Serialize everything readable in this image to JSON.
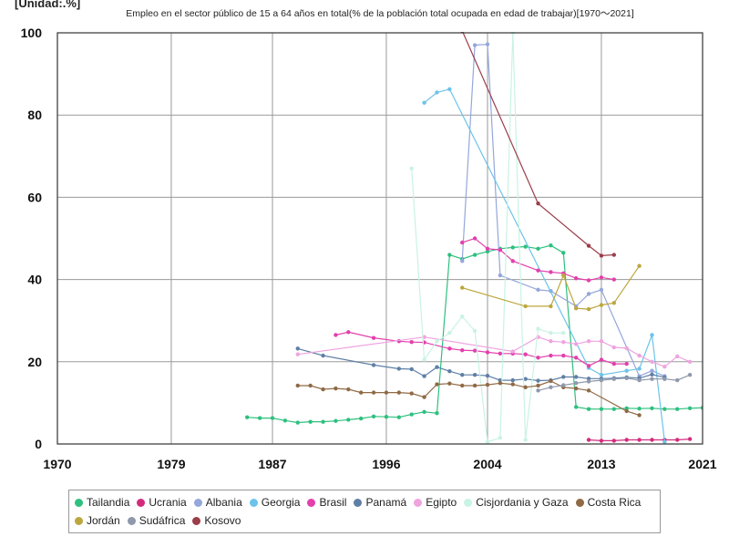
{
  "chart_data": {
    "type": "line",
    "title": "Empleo en el sector público de 15 a 64 años en total(% de la población total ocupada en edad de trabajar)[1970〜2021]",
    "unit_label": "[Unidad:.%]",
    "xlim": [
      1970,
      2021
    ],
    "ylim": [
      0,
      100
    ],
    "x_ticks": [
      "1970",
      "1979",
      "1987",
      "1996",
      "2004",
      "2013",
      "2021"
    ],
    "y_ticks": [
      "0",
      "20",
      "40",
      "60",
      "80",
      "100"
    ],
    "grid": true,
    "legend_position": "bottom",
    "series": [
      {
        "name": "Tailandia",
        "color": "#2ec07f",
        "x": [
          1985,
          1986,
          1987,
          1988,
          1989,
          1990,
          1991,
          1992,
          1993,
          1994,
          1995,
          1996,
          1997,
          1998,
          1999,
          2000,
          2001,
          2002,
          2003,
          2004,
          2005,
          2006,
          2007,
          2008,
          2009,
          2010,
          2011,
          2012,
          2013,
          2014,
          2015,
          2016,
          2017,
          2018,
          2019,
          2020,
          2021
        ],
        "y": [
          6.5,
          6.3,
          6.3,
          5.7,
          5.2,
          5.4,
          5.4,
          5.6,
          5.9,
          6.2,
          6.7,
          6.6,
          6.5,
          7.2,
          7.8,
          7.5,
          46.0,
          45.0,
          46.0,
          46.8,
          47.5,
          47.8,
          48.0,
          47.5,
          48.3,
          46.5,
          9.0,
          8.5,
          8.5,
          8.5,
          8.7,
          8.6,
          8.7,
          8.5,
          8.5,
          8.7,
          8.8
        ]
      },
      {
        "name": "Ucrania",
        "color": "#d42b7c",
        "x": [
          2012,
          2013,
          2014,
          2015,
          2016,
          2017,
          2018,
          2019,
          2020
        ],
        "y": [
          1.0,
          0.8,
          0.8,
          1.0,
          1.0,
          1.0,
          1.0,
          1.0,
          1.2
        ]
      },
      {
        "name": "Albania",
        "color": "#94a7db",
        "x": [
          2002,
          2003,
          2004,
          2005,
          2008,
          2009,
          2011,
          2012,
          2013,
          2016,
          2017,
          2018
        ],
        "y": [
          44.5,
          97.0,
          97.2,
          41.0,
          37.5,
          37.2,
          33.5,
          36.5,
          37.5,
          16.5,
          17.8,
          16.5
        ]
      },
      {
        "name": "Georgia",
        "color": "#6cc3ea",
        "x": [
          1999,
          2000,
          2001,
          2012,
          2013,
          2015,
          2016,
          2017,
          2018
        ],
        "y": [
          83.0,
          85.5,
          86.3,
          18.5,
          16.8,
          17.8,
          18.3,
          26.5,
          0.5
        ]
      },
      {
        "name": "Brasil",
        "color": "#e33fad",
        "x": [
          1992,
          1993,
          1995,
          1997,
          1998,
          1999,
          2001,
          2002,
          2003,
          2004,
          2005,
          2006,
          2007,
          2008,
          2009,
          2010,
          2011,
          2012,
          2013,
          2014,
          2015
        ],
        "y": [
          26.5,
          27.2,
          25.8,
          25.0,
          24.8,
          24.7,
          23.2,
          22.8,
          22.7,
          22.3,
          22.0,
          22.0,
          21.8,
          21.0,
          21.5,
          21.5,
          21.0,
          19.0,
          20.5,
          19.5,
          19.5
        ]
      },
      {
        "name": "Brasil",
        "color": "#e33fad",
        "x": [
          2002,
          2003,
          2004,
          2005,
          2006,
          2008,
          2009,
          2010,
          2011,
          2012,
          2013,
          2014
        ],
        "y": [
          49.0,
          50.0,
          47.5,
          47.2,
          44.5,
          42.2,
          41.8,
          41.5,
          40.3,
          39.8,
          40.5,
          40.0
        ]
      },
      {
        "name": "Panamá",
        "color": "#5f7fa6",
        "x": [
          1989,
          1991,
          1995,
          1997,
          1998,
          1999,
          2000,
          2001,
          2002,
          2003,
          2004,
          2005,
          2006,
          2007,
          2008,
          2009,
          2010,
          2011,
          2012,
          2013,
          2014,
          2015,
          2016,
          2017,
          2018
        ],
        "y": [
          23.2,
          21.5,
          19.2,
          18.3,
          18.2,
          16.5,
          18.7,
          17.7,
          16.8,
          16.8,
          16.6,
          15.5,
          15.5,
          15.8,
          15.4,
          15.5,
          16.3,
          16.3,
          15.9,
          15.9,
          16.0,
          16.2,
          16.0,
          16.9,
          16.2
        ]
      },
      {
        "name": "Egipto",
        "color": "#efa3df",
        "x": [
          1989,
          1999,
          2006,
          2008,
          2009,
          2010,
          2011,
          2012,
          2013,
          2014,
          2015,
          2016,
          2017,
          2018,
          2019,
          2020
        ],
        "y": [
          21.8,
          26.0,
          22.5,
          26.0,
          25.0,
          24.8,
          24.3,
          25.0,
          25.0,
          23.5,
          23.3,
          21.5,
          20.0,
          18.8,
          21.3,
          20.0
        ]
      },
      {
        "name": "Cisjordania y Gaza",
        "color": "#c9f3e3",
        "x": [
          1998,
          1999,
          2000,
          2001,
          2002,
          2003,
          2004,
          2005,
          2006,
          2007,
          2008,
          2009,
          2010
        ],
        "y": [
          67.0,
          20.5,
          25.0,
          27.0,
          31.0,
          27.5,
          0.5,
          1.5,
          100.0,
          1.0,
          28.0,
          27.0,
          27.0
        ]
      },
      {
        "name": "Costa Rica",
        "color": "#8f6a45",
        "x": [
          1989,
          1990,
          1991,
          1992,
          1993,
          1994,
          1995,
          1996,
          1997,
          1998,
          1999,
          2000,
          2001,
          2002,
          2003,
          2004,
          2005,
          2006,
          2007,
          2008,
          2009,
          2010,
          2011,
          2012,
          2015,
          2016
        ],
        "y": [
          14.2,
          14.2,
          13.3,
          13.5,
          13.3,
          12.5,
          12.5,
          12.5,
          12.5,
          12.3,
          11.4,
          14.5,
          14.7,
          14.2,
          14.2,
          14.4,
          14.8,
          14.5,
          13.8,
          14.2,
          15.3,
          13.8,
          13.5,
          13.0,
          8.0,
          7.0
        ]
      },
      {
        "name": "Jordán",
        "color": "#bca73f",
        "x": [
          2002,
          2007,
          2009,
          2010,
          2011,
          2012,
          2013,
          2014,
          2016
        ],
        "y": [
          38.0,
          33.5,
          33.5,
          41.0,
          33.0,
          32.8,
          33.8,
          34.3,
          43.3
        ]
      },
      {
        "name": "Sudáfrica",
        "color": "#8f99ab",
        "x": [
          2008,
          2009,
          2010,
          2011,
          2012,
          2013,
          2014,
          2015,
          2016,
          2017,
          2018,
          2019,
          2020
        ],
        "y": [
          13.0,
          13.8,
          14.3,
          14.8,
          15.2,
          15.5,
          15.8,
          16.0,
          15.5,
          15.8,
          15.8,
          15.5,
          16.8
        ]
      },
      {
        "name": "Kosovo",
        "color": "#9b3e4a",
        "x": [
          2002,
          2008,
          2012,
          2013,
          2014
        ],
        "y": [
          100.5,
          58.5,
          48.2,
          45.8,
          46.0
        ]
      }
    ]
  },
  "legend": [
    {
      "label": "Tailandia",
      "color": "#2ec07f"
    },
    {
      "label": "Ucrania",
      "color": "#d42b7c"
    },
    {
      "label": "Albania",
      "color": "#94a7db"
    },
    {
      "label": "Georgia",
      "color": "#6cc3ea"
    },
    {
      "label": "Brasil",
      "color": "#e33fad"
    },
    {
      "label": "Panamá",
      "color": "#5f7fa6"
    },
    {
      "label": "Egipto",
      "color": "#efa3df"
    },
    {
      "label": "Cisjordania y Gaza",
      "color": "#c9f3e3"
    },
    {
      "label": "Costa Rica",
      "color": "#8f6a45"
    },
    {
      "label": "Jordán",
      "color": "#bca73f"
    },
    {
      "label": "Sudáfrica",
      "color": "#8f99ab"
    },
    {
      "label": "Kosovo",
      "color": "#9b3e4a"
    }
  ]
}
